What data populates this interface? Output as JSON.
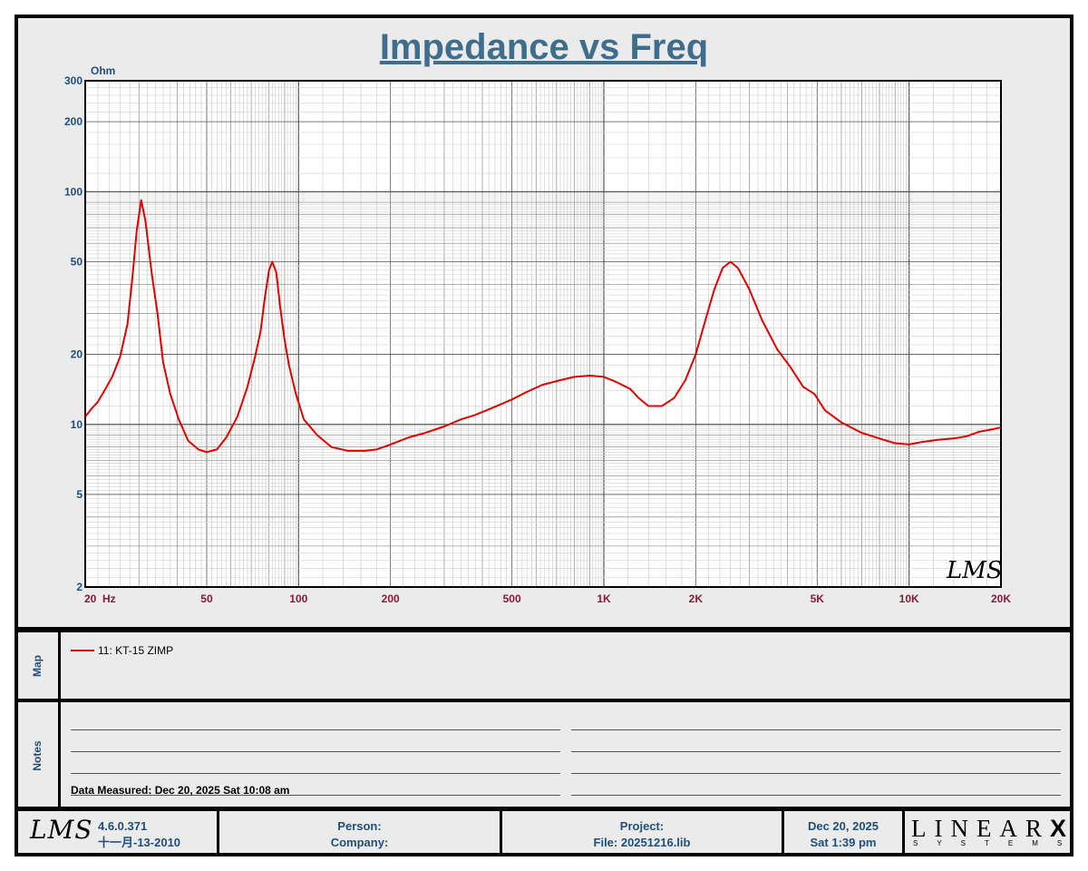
{
  "title": "Impedance vs Freq",
  "chart_data": {
    "type": "line",
    "title": "Impedance vs Freq",
    "ylabel": "Ohm",
    "xlabel": "Hz",
    "x_scale": "log",
    "y_scale": "log",
    "xlim": [
      20,
      20000
    ],
    "ylim": [
      2,
      300
    ],
    "grid": true,
    "x_ticks": [
      {
        "value": 20,
        "label": "20  Hz"
      },
      {
        "value": 50,
        "label": "50"
      },
      {
        "value": 100,
        "label": "100"
      },
      {
        "value": 200,
        "label": "200"
      },
      {
        "value": 500,
        "label": "500"
      },
      {
        "value": 1000,
        "label": "1K"
      },
      {
        "value": 2000,
        "label": "2K"
      },
      {
        "value": 5000,
        "label": "5K"
      },
      {
        "value": 10000,
        "label": "10K"
      },
      {
        "value": 20000,
        "label": "20K"
      }
    ],
    "y_ticks": [
      {
        "value": 2,
        "label": "2"
      },
      {
        "value": 5,
        "label": "5"
      },
      {
        "value": 10,
        "label": "10"
      },
      {
        "value": 20,
        "label": "20"
      },
      {
        "value": 50,
        "label": "50"
      },
      {
        "value": 100,
        "label": "100"
      },
      {
        "value": 200,
        "label": "200"
      },
      {
        "value": 300,
        "label": "300"
      }
    ],
    "series": [
      {
        "name": "11: KT-15 ZIMP",
        "color": "#e00000",
        "points": [
          [
            20,
            10.8
          ],
          [
            21,
            11.7
          ],
          [
            22,
            12.5
          ],
          [
            23,
            13.8
          ],
          [
            24.5,
            16
          ],
          [
            26,
            19.5
          ],
          [
            27.5,
            27
          ],
          [
            28.5,
            42
          ],
          [
            29.5,
            68
          ],
          [
            30.5,
            92
          ],
          [
            31.5,
            75
          ],
          [
            33,
            45
          ],
          [
            34.5,
            30
          ],
          [
            36,
            18.5
          ],
          [
            38,
            13.5
          ],
          [
            40.5,
            10.5
          ],
          [
            43.5,
            8.5
          ],
          [
            47,
            7.8
          ],
          [
            50,
            7.6
          ],
          [
            54,
            7.8
          ],
          [
            58,
            8.8
          ],
          [
            63,
            10.8
          ],
          [
            68,
            14.5
          ],
          [
            72,
            19.5
          ],
          [
            75,
            25
          ],
          [
            77.5,
            35
          ],
          [
            80,
            46
          ],
          [
            82,
            50
          ],
          [
            84.5,
            45
          ],
          [
            87,
            32
          ],
          [
            90,
            23
          ],
          [
            93,
            18
          ],
          [
            98,
            13.5
          ],
          [
            104,
            10.5
          ],
          [
            115,
            9
          ],
          [
            128,
            8
          ],
          [
            145,
            7.7
          ],
          [
            165,
            7.7
          ],
          [
            180,
            7.8
          ],
          [
            200,
            8.2
          ],
          [
            230,
            8.8
          ],
          [
            260,
            9.2
          ],
          [
            300,
            9.8
          ],
          [
            340,
            10.5
          ],
          [
            380,
            11
          ],
          [
            420,
            11.6
          ],
          [
            460,
            12.2
          ],
          [
            500,
            12.8
          ],
          [
            560,
            13.8
          ],
          [
            630,
            14.8
          ],
          [
            720,
            15.5
          ],
          [
            800,
            16
          ],
          [
            900,
            16.2
          ],
          [
            1000,
            16
          ],
          [
            1100,
            15.2
          ],
          [
            1220,
            14.2
          ],
          [
            1300,
            13
          ],
          [
            1400,
            12
          ],
          [
            1550,
            12
          ],
          [
            1700,
            13
          ],
          [
            1850,
            15.5
          ],
          [
            2000,
            20
          ],
          [
            2150,
            28
          ],
          [
            2300,
            38
          ],
          [
            2450,
            47
          ],
          [
            2600,
            50
          ],
          [
            2750,
            47
          ],
          [
            3000,
            38
          ],
          [
            3300,
            28
          ],
          [
            3700,
            21
          ],
          [
            4100,
            17.5
          ],
          [
            4500,
            14.5
          ],
          [
            4900,
            13.5
          ],
          [
            5300,
            11.5
          ],
          [
            6000,
            10.2
          ],
          [
            7000,
            9.2
          ],
          [
            8000,
            8.7
          ],
          [
            9000,
            8.3
          ],
          [
            10000,
            8.2
          ],
          [
            11000,
            8.4
          ],
          [
            12500,
            8.6
          ],
          [
            14000,
            8.7
          ],
          [
            15500,
            8.9
          ],
          [
            17000,
            9.3
          ],
          [
            18500,
            9.5
          ],
          [
            20000,
            9.7
          ]
        ]
      }
    ],
    "watermark": "LMS"
  },
  "map": {
    "section_label": "Map",
    "legend_label": "11: KT-15 ZIMP",
    "legend_color": "#e00000"
  },
  "notes": {
    "section_label": "Notes",
    "measured_text": "Data Measured: Dec 20, 2025  Sat 10:08 am"
  },
  "footer": {
    "logo": "LMS",
    "version": "4.6.0.371",
    "version_date": "十一月-13-2010",
    "person_label": "Person:",
    "company_label": "Company:",
    "project_label": "Project:",
    "file_label": "File: 20251216.lib",
    "date": "Dec 20, 2025",
    "time": "Sat  1:39 pm",
    "brand_main": "LINEAR",
    "brand_x": "X",
    "brand_sub": "SYSTEMS"
  }
}
